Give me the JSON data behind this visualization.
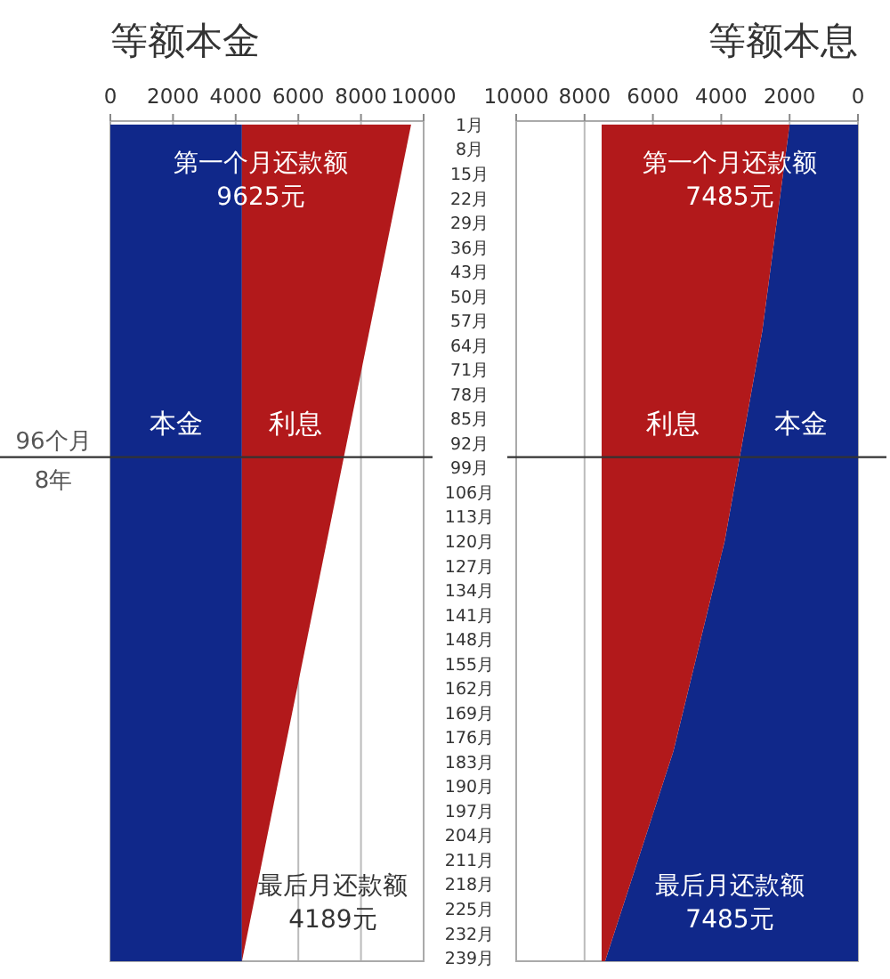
{
  "chart_data": [
    {
      "type": "area",
      "orientation": "horizontal",
      "stacked": true,
      "title": "等额本金",
      "x": [
        1,
        240
      ],
      "series": [
        {
          "name": "本金",
          "color": "#10288a",
          "values": [
            4200,
            4200
          ]
        },
        {
          "name": "利息",
          "color": "#b2191b",
          "values": [
            5400,
            0
          ]
        }
      ],
      "xlim": [
        0,
        10000
      ],
      "xticks": [
        0,
        2000,
        4000,
        6000,
        8000,
        10000
      ],
      "ylim": [
        240,
        0
      ],
      "yticks": [
        {
          "value": 1,
          "label": "1月"
        },
        {
          "value": 8,
          "label": "8月"
        },
        {
          "value": 15,
          "label": "15月"
        },
        {
          "value": 22,
          "label": "22月"
        },
        {
          "value": 29,
          "label": "29月"
        },
        {
          "value": 36,
          "label": "36月"
        },
        {
          "value": 43,
          "label": "43月"
        },
        {
          "value": 50,
          "label": "50月"
        },
        {
          "value": 57,
          "label": "57月"
        },
        {
          "value": 64,
          "label": "64月"
        },
        {
          "value": 71,
          "label": "71月"
        },
        {
          "value": 78,
          "label": "78月"
        },
        {
          "value": 85,
          "label": "85月"
        },
        {
          "value": 92,
          "label": "92月"
        },
        {
          "value": 99,
          "label": "99月"
        },
        {
          "value": 106,
          "label": "106月"
        },
        {
          "value": 113,
          "label": "113月"
        },
        {
          "value": 120,
          "label": "120月"
        },
        {
          "value": 127,
          "label": "127月"
        },
        {
          "value": 134,
          "label": "134月"
        },
        {
          "value": 141,
          "label": "141月"
        },
        {
          "value": 148,
          "label": "148月"
        },
        {
          "value": 155,
          "label": "155月"
        },
        {
          "value": 162,
          "label": "162月"
        },
        {
          "value": 169,
          "label": "169月"
        },
        {
          "value": 176,
          "label": "176月"
        },
        {
          "value": 183,
          "label": "183月"
        },
        {
          "value": 190,
          "label": "190月"
        },
        {
          "value": 197,
          "label": "197月"
        },
        {
          "value": 204,
          "label": "204月"
        },
        {
          "value": 211,
          "label": "211月"
        },
        {
          "value": 218,
          "label": "218月"
        },
        {
          "value": 225,
          "label": "225月"
        },
        {
          "value": 232,
          "label": "232月"
        },
        {
          "value": 239,
          "label": "239月"
        }
      ],
      "grid": "x",
      "ref_lines": [
        {
          "axis": "y",
          "value": 96,
          "label": "96个月 8年"
        }
      ],
      "annotations": [
        "第一个月还款额 9625元",
        "最后月还款额 4189元"
      ]
    },
    {
      "type": "area",
      "orientation": "horizontal",
      "stacked": true,
      "title": "等额本息",
      "x": [
        1,
        60,
        120,
        180,
        240
      ],
      "series": [
        {
          "name": "本金",
          "color": "#10288a",
          "values": [
            2000,
            2800,
            3900,
            5400,
            7400
          ]
        },
        {
          "name": "利息",
          "color": "#b2191b",
          "values": [
            5500,
            4700,
            3600,
            2100,
            100
          ]
        }
      ],
      "xlim": [
        10000,
        0
      ],
      "xticks": [
        10000,
        8000,
        6000,
        4000,
        2000,
        0
      ],
      "ylim": [
        240,
        0
      ],
      "tick_labels": "x",
      "grid": "x",
      "ref_lines": [
        {
          "axis": "y",
          "value": 96
        }
      ],
      "annotations": [
        "第一个月还款额 7485元",
        "最后月还款额 7485元"
      ]
    }
  ]
}
